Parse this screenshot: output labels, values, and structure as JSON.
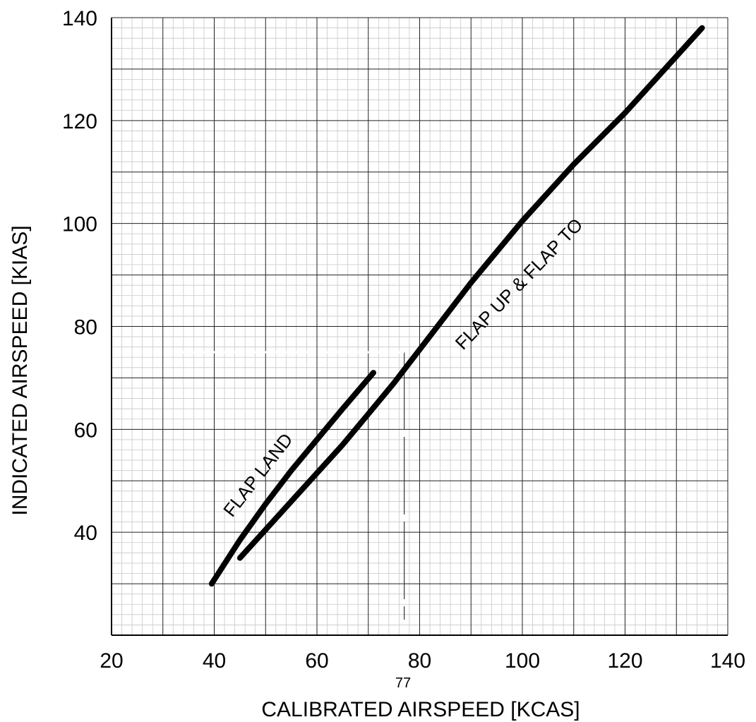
{
  "chart_data": {
    "type": "line",
    "xlabel": "CALIBRATED AIRSPEED [KCAS]",
    "ylabel": "INDICATED AIRSPEED [KIAS]",
    "xlim": [
      20,
      140
    ],
    "ylim": [
      20,
      140
    ],
    "x_ticks": [
      20,
      40,
      60,
      80,
      100,
      120,
      140
    ],
    "y_ticks": [
      40,
      60,
      80,
      100,
      120,
      140
    ],
    "grid": true,
    "series": [
      {
        "name": "FLAP UP & FLAP TO",
        "x": [
          45,
          50,
          55,
          60,
          65,
          70,
          75,
          80,
          85,
          90,
          95,
          100,
          105,
          110,
          115,
          120,
          125,
          130,
          135
        ],
        "y": [
          35,
          40.5,
          46,
          51.5,
          57,
          63,
          69,
          75.5,
          82,
          88.5,
          94.5,
          100.5,
          106,
          111.5,
          116.5,
          121.5,
          127,
          132.5,
          138
        ]
      },
      {
        "name": "FLAP LAND",
        "x": [
          39.5,
          45,
          50,
          55,
          60,
          65,
          71
        ],
        "y": [
          30,
          38.5,
          45.5,
          52,
          58,
          64,
          71
        ]
      }
    ],
    "annotations": [
      {
        "text": "FLAP UP & FLAP TO"
      },
      {
        "text": "FLAP LAND"
      },
      {
        "text": "77"
      }
    ],
    "reference": {
      "x": 77,
      "y": 75
    }
  }
}
